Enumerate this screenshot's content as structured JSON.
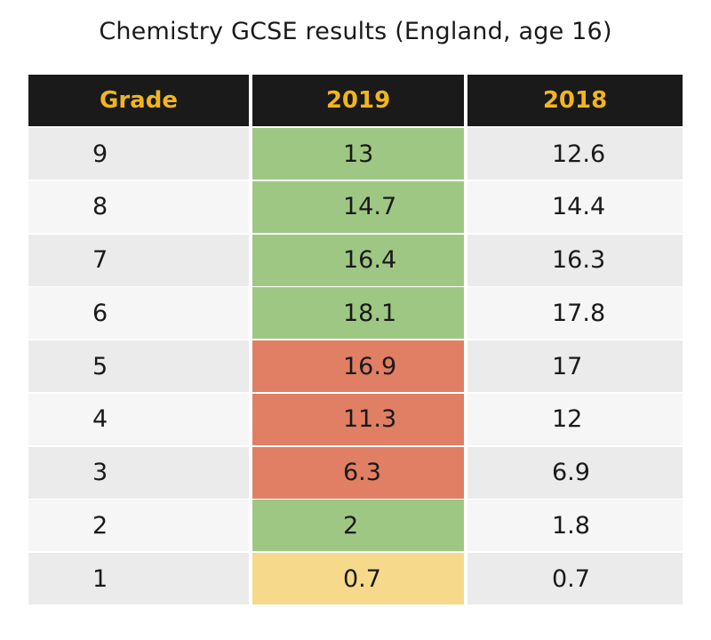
{
  "chart_data": {
    "type": "table",
    "title": "Chemistry GCSE results (England, age 16)",
    "columns": [
      "Grade",
      "2019",
      "2018"
    ],
    "rows": [
      {
        "grade": "9",
        "y2019": "13",
        "y2018": "12.6",
        "highlight": "#9ec784"
      },
      {
        "grade": "8",
        "y2019": "14.7",
        "y2018": "14.4",
        "highlight": "#9ec784"
      },
      {
        "grade": "7",
        "y2019": "16.4",
        "y2018": "16.3",
        "highlight": "#9ec784"
      },
      {
        "grade": "6",
        "y2019": "18.1",
        "y2018": "17.8",
        "highlight": "#9ec784"
      },
      {
        "grade": "5",
        "y2019": "16.9",
        "y2018": "17",
        "highlight": "#e07f64"
      },
      {
        "grade": "4",
        "y2019": "11.3",
        "y2018": "12",
        "highlight": "#e07f64"
      },
      {
        "grade": "3",
        "y2019": "6.3",
        "y2018": "6.9",
        "highlight": "#e07f64"
      },
      {
        "grade": "2",
        "y2019": "2",
        "y2018": "1.8",
        "highlight": "#9ec784"
      },
      {
        "grade": "1",
        "y2019": "0.7",
        "y2018": "0.7",
        "highlight": "#f6d98a"
      }
    ]
  },
  "colors": {
    "header_bg": "#1a1a1a",
    "header_text": "#f2b51f",
    "increase": "#9ec784",
    "decrease": "#e07f64",
    "unchanged": "#f6d98a"
  }
}
